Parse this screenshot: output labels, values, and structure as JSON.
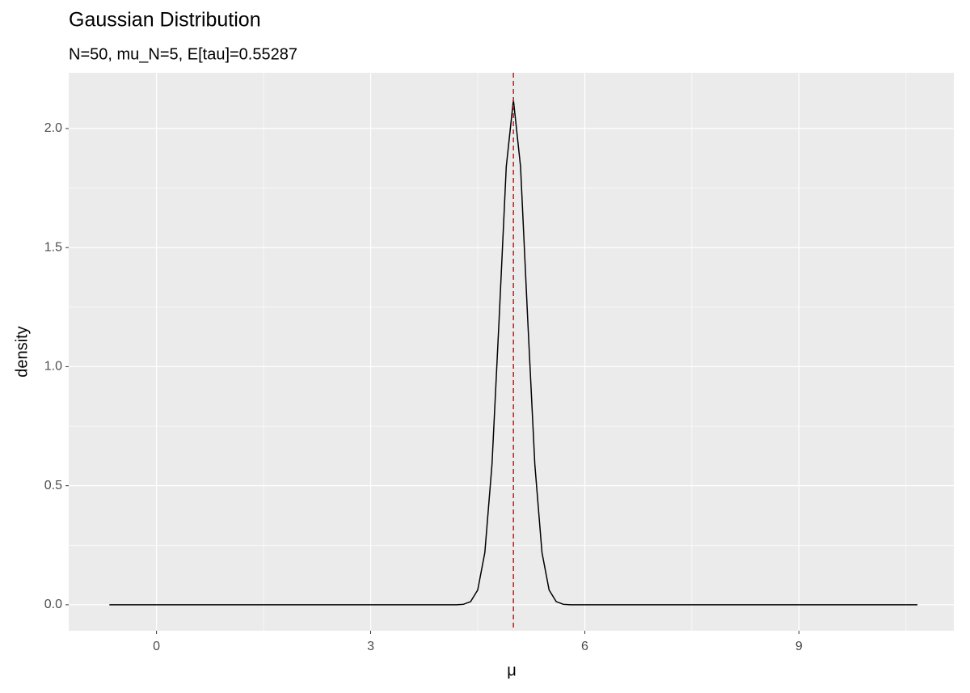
{
  "chart_data": {
    "type": "line",
    "title": "Gaussian Distribution",
    "subtitle": "N=50, mu_N=5, E[tau]=0.55287",
    "x_label": "μ",
    "y_label": "density",
    "series": [
      {
        "color": "#000000",
        "x": [
          -0.66,
          4.0,
          4.2,
          4.3,
          4.4,
          4.5,
          4.6,
          4.7,
          4.8,
          4.9,
          5.0,
          5.1,
          5.2,
          5.3,
          5.4,
          5.5,
          5.6,
          5.7,
          5.8,
          6.0,
          10.66
        ],
        "values": [
          0,
          0,
          0.0001,
          0.002,
          0.013,
          0.062,
          0.22,
          0.59,
          1.2,
          1.84,
          2.12,
          1.84,
          1.2,
          0.59,
          0.22,
          0.062,
          0.013,
          0.002,
          0.0001,
          0,
          0
        ]
      }
    ],
    "vline": {
      "value": 5,
      "color": "#ff0000"
    },
    "xlim": [
      -1.23,
      11.17
    ],
    "ylim": [
      -0.109,
      2.234
    ],
    "xticks": [
      0,
      3,
      6,
      9
    ],
    "yticks": [
      {
        "value": 0,
        "label": "0.0"
      },
      {
        "value": 0.5,
        "label": "0.5"
      },
      {
        "value": 1,
        "label": "1.0"
      },
      {
        "value": 1.5,
        "label": "1.5"
      },
      {
        "value": 2,
        "label": "2.0"
      }
    ],
    "grid": true
  }
}
